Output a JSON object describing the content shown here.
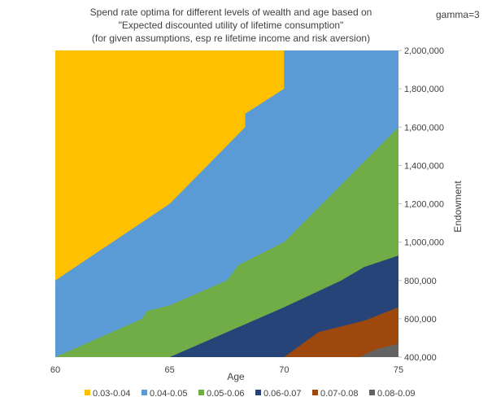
{
  "chart_data": {
    "type": "contour",
    "title_lines": [
      "Spend rate optima for different levels of wealth and age based on",
      "\"Expected discounted utility of lifetime consumption\"",
      "(for given assumptions, esp re lifetime income and risk aversion)"
    ],
    "annotation": "gamma=3",
    "xlabel": "Age",
    "ylabel": "Endowment",
    "xlim": [
      60,
      75
    ],
    "ylim": [
      400000,
      2000000
    ],
    "x_ticks": [
      "60",
      "65",
      "70",
      "75"
    ],
    "x_tick_values": [
      60,
      65,
      70,
      75
    ],
    "y_ticks": [
      "400,000",
      "600,000",
      "800,000",
      "1,000,000",
      "1,200,000",
      "1,400,000",
      "1,600,000",
      "1,800,000",
      "2,000,000"
    ],
    "y_tick_values": [
      400000,
      600000,
      800000,
      1000000,
      1200000,
      1400000,
      1600000,
      1800000,
      2000000
    ],
    "legend_position": "bottom",
    "bands": [
      {
        "label": "0.03-0.04",
        "color": "#ffc000"
      },
      {
        "label": "0.04-0.05",
        "color": "#5b9bd5"
      },
      {
        "label": "0.05-0.06",
        "color": "#70ad47"
      },
      {
        "label": "0.06-0.07",
        "color": "#264478"
      },
      {
        "label": "0.07-0.08",
        "color": "#9e480e"
      },
      {
        "label": "0.08-0.09",
        "color": "#636363"
      }
    ],
    "boundaries": [
      [
        [
          60,
          800000
        ],
        [
          65,
          1200000
        ],
        [
          68.3,
          1600000
        ],
        [
          68.3,
          1670000
        ],
        [
          70,
          1800000
        ],
        [
          70,
          2000000
        ]
      ],
      [
        [
          60,
          400000
        ],
        [
          63.8,
          600000
        ],
        [
          64,
          640000
        ],
        [
          65,
          670000
        ],
        [
          67.5,
          800000
        ],
        [
          68,
          880000
        ],
        [
          70,
          1000000
        ],
        [
          75,
          1600000
        ]
      ],
      [
        [
          65,
          400000
        ],
        [
          70,
          660000
        ],
        [
          72.5,
          800000
        ],
        [
          73.5,
          870000
        ],
        [
          75,
          930000
        ]
      ],
      [
        [
          70,
          400000
        ],
        [
          71.5,
          530000
        ],
        [
          73.5,
          590000
        ],
        [
          75,
          660000
        ]
      ],
      [
        [
          73.3,
          400000
        ],
        [
          74,
          440000
        ],
        [
          75,
          470000
        ]
      ]
    ]
  }
}
